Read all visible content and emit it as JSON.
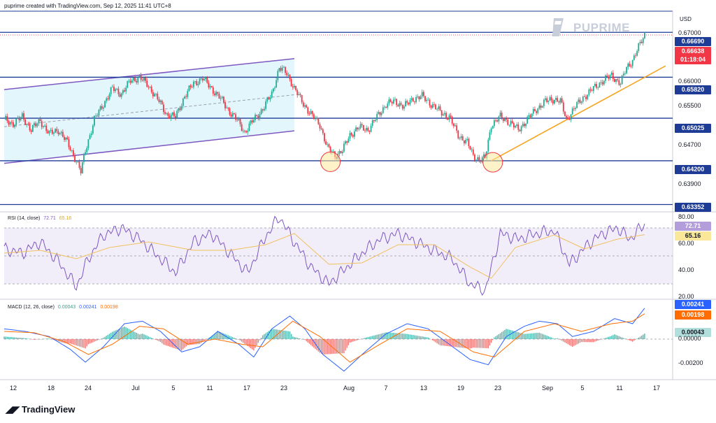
{
  "header": "puprime created with TradingView.com, Sep 12, 2025 11:41 UTC+8",
  "brand": "PUPRIME",
  "currency": "USD",
  "footer_logo": "TradingView",
  "colors": {
    "up": "#22ab94",
    "down": "#f23645",
    "level": "#1e3c96",
    "channel": "#7e57c2",
    "trend": "#f5a623",
    "rsi": "#7e57c2",
    "rsi_ma": "#f0c060",
    "macd": "#2962ff",
    "signal": "#ff6d00"
  },
  "price_panel": {
    "tick_labels": [
      "0.67000",
      "0.66000",
      "0.65500",
      "0.64700",
      "0.63900"
    ],
    "level_tags": [
      "0.66690",
      "0.65820",
      "0.65025",
      "0.64200",
      "0.63352"
    ],
    "last_price": "0.66638",
    "countdown": "01:18:04"
  },
  "rsi_panel": {
    "label": "RSI (14, close)",
    "value": "72.71",
    "ma_value": "65.16",
    "ticks": [
      "80.00",
      "60.00",
      "40.00",
      "20.00"
    ]
  },
  "macd_panel": {
    "label": "MACD (12, 26, close)",
    "hist": "0.00043",
    "macd": "0.00241",
    "signal": "0.00198",
    "ticks": [
      "0.00000",
      "-0.00200"
    ]
  },
  "x_axis": {
    "labels": [
      "12",
      "18",
      "24",
      "Jul",
      "5",
      "11",
      "17",
      "23",
      "Aug",
      "7",
      "13",
      "19",
      "23",
      "Sep",
      "5",
      "11",
      "17"
    ]
  },
  "chart_data": [
    {
      "type": "candlestick",
      "title": "",
      "ylim": [
        0.6325,
        0.671
      ],
      "horizontal_levels": [
        0.6669,
        0.6582,
        0.65025,
        0.642,
        0.63352
      ],
      "x_labels": [
        "12",
        "18",
        "24",
        "Jul",
        "5",
        "11",
        "17",
        "23",
        "Aug",
        "7",
        "13",
        "19",
        "23",
        "Sep",
        "5",
        "11",
        "17"
      ],
      "close_path": [
        [
          0,
          0.65
        ],
        [
          6,
          0.6492
        ],
        [
          12,
          0.6505
        ],
        [
          18,
          0.648
        ],
        [
          24,
          0.6498
        ],
        [
          30,
          0.6472
        ],
        [
          36,
          0.648
        ],
        [
          42,
          0.6455
        ],
        [
          48,
          0.642
        ],
        [
          51,
          0.6398
        ],
        [
          54,
          0.644
        ],
        [
          60,
          0.65
        ],
        [
          66,
          0.653
        ],
        [
          72,
          0.656
        ],
        [
          78,
          0.655
        ],
        [
          84,
          0.6575
        ],
        [
          90,
          0.6582
        ],
        [
          96,
          0.6565
        ],
        [
          102,
          0.654
        ],
        [
          108,
          0.651
        ],
        [
          114,
          0.6505
        ],
        [
          120,
          0.6545
        ],
        [
          126,
          0.657
        ],
        [
          132,
          0.658
        ],
        [
          138,
          0.656
        ],
        [
          144,
          0.654
        ],
        [
          150,
          0.6515
        ],
        [
          156,
          0.6495
        ],
        [
          160,
          0.6475
        ],
        [
          166,
          0.65
        ],
        [
          172,
          0.652
        ],
        [
          178,
          0.655
        ],
        [
          183,
          0.66
        ],
        [
          188,
          0.659
        ],
        [
          193,
          0.656
        ],
        [
          198,
          0.6535
        ],
        [
          204,
          0.651
        ],
        [
          210,
          0.649
        ],
        [
          215,
          0.6445
        ],
        [
          220,
          0.643
        ],
        [
          225,
          0.644
        ],
        [
          230,
          0.647
        ],
        [
          236,
          0.6485
        ],
        [
          242,
          0.648
        ],
        [
          248,
          0.6505
        ],
        [
          254,
          0.653
        ],
        [
          260,
          0.6535
        ],
        [
          266,
          0.6525
        ],
        [
          272,
          0.654
        ],
        [
          278,
          0.6545
        ],
        [
          284,
          0.653
        ],
        [
          290,
          0.6515
        ],
        [
          296,
          0.6505
        ],
        [
          302,
          0.647
        ],
        [
          308,
          0.6455
        ],
        [
          312,
          0.643
        ],
        [
          316,
          0.6422
        ],
        [
          320,
          0.6425
        ],
        [
          324,
          0.649
        ],
        [
          330,
          0.6505
        ],
        [
          336,
          0.6495
        ],
        [
          342,
          0.648
        ],
        [
          348,
          0.65
        ],
        [
          354,
          0.652
        ],
        [
          360,
          0.6535
        ],
        [
          366,
          0.654
        ],
        [
          370,
          0.6535
        ],
        [
          374,
          0.65
        ],
        [
          380,
          0.6525
        ],
        [
          386,
          0.6545
        ],
        [
          392,
          0.656
        ],
        [
          398,
          0.6575
        ],
        [
          404,
          0.6585
        ],
        [
          410,
          0.657
        ],
        [
          414,
          0.66
        ],
        [
          418,
          0.6615
        ],
        [
          422,
          0.664
        ],
        [
          426,
          0.6664
        ]
      ],
      "channel": {
        "upper": [
          [
            0,
            0.6558
          ],
          [
            193,
            0.6618
          ]
        ],
        "lower": [
          [
            0,
            0.6415
          ],
          [
            193,
            0.6478
          ]
        ],
        "mid": [
          [
            0,
            0.6486
          ],
          [
            193,
            0.6548
          ]
        ]
      },
      "trendline": [
        [
          324,
          0.642
        ],
        [
          440,
          0.6604
        ]
      ],
      "highlight_circles": [
        [
          217,
          0.6418
        ],
        [
          325,
          0.6417
        ]
      ],
      "last_price": 0.66638
    },
    {
      "type": "line",
      "title": "RSI (14, close)",
      "ylim": [
        20,
        80
      ],
      "reference_lines": [
        70,
        50,
        30
      ],
      "series": [
        {
          "name": "RSI",
          "points": [
            [
              0,
              55
            ],
            [
              12,
              52
            ],
            [
              24,
              60
            ],
            [
              36,
              46
            ],
            [
              48,
              28
            ],
            [
              56,
              48
            ],
            [
              66,
              65
            ],
            [
              78,
              70
            ],
            [
              90,
              62
            ],
            [
              102,
              50
            ],
            [
              114,
              38
            ],
            [
              126,
              60
            ],
            [
              138,
              66
            ],
            [
              150,
              52
            ],
            [
              162,
              38
            ],
            [
              174,
              64
            ],
            [
              183,
              78
            ],
            [
              193,
              60
            ],
            [
              204,
              42
            ],
            [
              216,
              30
            ],
            [
              226,
              40
            ],
            [
              238,
              52
            ],
            [
              250,
              62
            ],
            [
              262,
              66
            ],
            [
              274,
              60
            ],
            [
              286,
              54
            ],
            [
              298,
              48
            ],
            [
              310,
              30
            ],
            [
              320,
              25
            ],
            [
              330,
              66
            ],
            [
              342,
              62
            ],
            [
              354,
              66
            ],
            [
              366,
              68
            ],
            [
              376,
              44
            ],
            [
              388,
              58
            ],
            [
              398,
              66
            ],
            [
              408,
              70
            ],
            [
              416,
              62
            ],
            [
              426,
              72.71
            ]
          ]
        },
        {
          "name": "RSI-based MA",
          "points": [
            [
              0,
              52
            ],
            [
              24,
              54
            ],
            [
              48,
              48
            ],
            [
              70,
              56
            ],
            [
              96,
              60
            ],
            [
              126,
              54
            ],
            [
              150,
              54
            ],
            [
              174,
              58
            ],
            [
              193,
              66
            ],
            [
              216,
              44
            ],
            [
              238,
              45
            ],
            [
              262,
              58
            ],
            [
              286,
              58
            ],
            [
              310,
              42
            ],
            [
              324,
              34
            ],
            [
              340,
              56
            ],
            [
              366,
              65
            ],
            [
              386,
              55
            ],
            [
              408,
              62
            ],
            [
              426,
              65.16
            ]
          ]
        }
      ]
    },
    {
      "type": "line",
      "title": "MACD (12, 26, close)",
      "ylim": [
        -0.003,
        0.003
      ],
      "reference_lines": [
        0
      ],
      "series": [
        {
          "name": "MACD",
          "points": [
            [
              0,
              0.0008
            ],
            [
              14,
              0.0006
            ],
            [
              30,
              0.0002
            ],
            [
              44,
              -0.0008
            ],
            [
              54,
              -0.0018
            ],
            [
              66,
              -0.0006
            ],
            [
              80,
              0.0012
            ],
            [
              92,
              0.0014
            ],
            [
              104,
              0.0006
            ],
            [
              118,
              -0.001
            ],
            [
              130,
              -0.0006
            ],
            [
              142,
              0.0006
            ],
            [
              156,
              -0.0004
            ],
            [
              166,
              -0.0014
            ],
            [
              178,
              0.0008
            ],
            [
              190,
              0.0018
            ],
            [
              200,
              0.0008
            ],
            [
              212,
              -0.0012
            ],
            [
              226,
              -0.0025
            ],
            [
              240,
              -0.001
            ],
            [
              254,
              0.0004
            ],
            [
              268,
              0.0012
            ],
            [
              282,
              0.0008
            ],
            [
              296,
              -0.0004
            ],
            [
              310,
              -0.0016
            ],
            [
              322,
              -0.002
            ],
            [
              334,
              0.0002
            ],
            [
              346,
              0.001
            ],
            [
              356,
              0.0014
            ],
            [
              368,
              0.0012
            ],
            [
              378,
              0.0002
            ],
            [
              392,
              0.0006
            ],
            [
              406,
              0.0016
            ],
            [
              418,
              0.0012
            ],
            [
              426,
              0.00241
            ]
          ]
        },
        {
          "name": "Signal",
          "points": [
            [
              0,
              0.0006
            ],
            [
              20,
              0.0005
            ],
            [
              40,
              -0.0002
            ],
            [
              56,
              -0.0012
            ],
            [
              72,
              -0.0004
            ],
            [
              90,
              0.001
            ],
            [
              106,
              0.0008
            ],
            [
              122,
              -0.0004
            ],
            [
              140,
              0.0
            ],
            [
              158,
              -0.0004
            ],
            [
              172,
              -0.0006
            ],
            [
              192,
              0.0014
            ],
            [
              210,
              0.0002
            ],
            [
              230,
              -0.0018
            ],
            [
              250,
              -0.0004
            ],
            [
              268,
              0.0008
            ],
            [
              290,
              0.0006
            ],
            [
              312,
              -0.001
            ],
            [
              326,
              -0.0014
            ],
            [
              346,
              0.0006
            ],
            [
              366,
              0.0012
            ],
            [
              384,
              0.0006
            ],
            [
              404,
              0.0012
            ],
            [
              418,
              0.0014
            ],
            [
              426,
              0.00198
            ]
          ]
        }
      ],
      "last_histogram": 0.00043
    }
  ]
}
